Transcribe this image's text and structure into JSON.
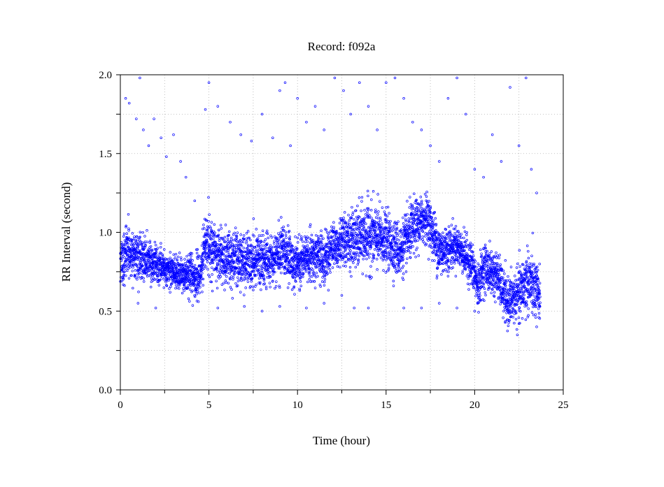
{
  "chart_data": {
    "type": "scatter",
    "title": "Record:  f092a",
    "xlabel": "Time (hour)",
    "ylabel": "RR Interval (second)",
    "xlim": [
      0,
      25
    ],
    "ylim": [
      0,
      2
    ],
    "xticks": [
      "0",
      "5",
      "10",
      "15",
      "20",
      "25"
    ],
    "yticks": [
      "0.0",
      "0.5",
      "1.0",
      "1.5",
      "2.0"
    ],
    "grid": true,
    "marker_color": "#0000ff",
    "segments": [
      [
        0.0,
        0.8,
        0.1
      ],
      [
        0.5,
        0.88,
        0.12
      ],
      [
        1.2,
        0.83,
        0.1
      ],
      [
        2.0,
        0.8,
        0.08
      ],
      [
        3.0,
        0.75,
        0.07
      ],
      [
        4.0,
        0.72,
        0.08
      ],
      [
        4.5,
        0.7,
        0.12
      ],
      [
        4.8,
        0.95,
        0.12
      ],
      [
        5.5,
        0.85,
        0.12
      ],
      [
        6.5,
        0.83,
        0.12
      ],
      [
        7.5,
        0.82,
        0.12
      ],
      [
        8.5,
        0.82,
        0.12
      ],
      [
        9.2,
        0.9,
        0.12
      ],
      [
        9.8,
        0.78,
        0.1
      ],
      [
        10.5,
        0.85,
        0.1
      ],
      [
        11.5,
        0.85,
        0.12
      ],
      [
        12.0,
        0.92,
        0.1
      ],
      [
        13.0,
        0.95,
        0.12
      ],
      [
        14.0,
        0.98,
        0.15
      ],
      [
        15.0,
        0.95,
        0.12
      ],
      [
        15.8,
        0.88,
        0.12
      ],
      [
        16.5,
        1.02,
        0.12
      ],
      [
        17.3,
        1.1,
        0.1
      ],
      [
        18.0,
        0.88,
        0.12
      ],
      [
        19.0,
        0.92,
        0.08
      ],
      [
        19.8,
        0.8,
        0.1
      ],
      [
        20.2,
        0.65,
        0.1
      ],
      [
        20.5,
        0.78,
        0.1
      ],
      [
        21.3,
        0.72,
        0.1
      ],
      [
        21.8,
        0.55,
        0.1
      ],
      [
        22.5,
        0.6,
        0.12
      ],
      [
        23.0,
        0.7,
        0.15
      ],
      [
        23.6,
        0.6,
        0.12
      ]
    ],
    "outlier_points": [
      [
        0.3,
        1.85
      ],
      [
        0.5,
        1.82
      ],
      [
        0.9,
        1.72
      ],
      [
        1.1,
        1.98
      ],
      [
        1.3,
        1.65
      ],
      [
        1.6,
        1.55
      ],
      [
        1.9,
        1.72
      ],
      [
        2.3,
        1.6
      ],
      [
        2.6,
        1.48
      ],
      [
        3.0,
        1.62
      ],
      [
        3.4,
        1.45
      ],
      [
        3.7,
        1.35
      ],
      [
        4.2,
        1.2
      ],
      [
        4.8,
        1.78
      ],
      [
        5.0,
        1.95
      ],
      [
        5.5,
        1.8
      ],
      [
        6.2,
        1.7
      ],
      [
        6.8,
        1.62
      ],
      [
        7.4,
        1.58
      ],
      [
        8.0,
        1.75
      ],
      [
        8.6,
        1.6
      ],
      [
        9.0,
        1.9
      ],
      [
        9.3,
        1.95
      ],
      [
        9.6,
        1.55
      ],
      [
        10.0,
        1.85
      ],
      [
        10.5,
        1.7
      ],
      [
        11.0,
        1.8
      ],
      [
        11.5,
        1.65
      ],
      [
        12.1,
        1.98
      ],
      [
        12.6,
        1.9
      ],
      [
        13.0,
        1.75
      ],
      [
        13.5,
        1.95
      ],
      [
        14.0,
        1.8
      ],
      [
        14.5,
        1.65
      ],
      [
        15.0,
        1.95
      ],
      [
        15.5,
        1.98
      ],
      [
        16.0,
        1.85
      ],
      [
        16.5,
        1.7
      ],
      [
        17.0,
        1.65
      ],
      [
        17.5,
        1.55
      ],
      [
        18.0,
        1.45
      ],
      [
        18.5,
        1.85
      ],
      [
        19.0,
        1.98
      ],
      [
        19.5,
        1.75
      ],
      [
        20.0,
        1.4
      ],
      [
        20.5,
        1.35
      ],
      [
        21.0,
        1.62
      ],
      [
        21.5,
        1.45
      ],
      [
        22.0,
        1.92
      ],
      [
        22.5,
        1.55
      ],
      [
        22.9,
        1.98
      ],
      [
        23.2,
        1.4
      ],
      [
        23.5,
        1.25
      ],
      [
        1.0,
        0.55
      ],
      [
        2.0,
        0.52
      ],
      [
        5.5,
        0.52
      ],
      [
        7.0,
        0.53
      ],
      [
        8.0,
        0.5
      ],
      [
        9.0,
        0.53
      ],
      [
        10.5,
        0.52
      ],
      [
        11.5,
        0.55
      ],
      [
        12.5,
        0.6
      ],
      [
        13.2,
        0.52
      ],
      [
        14.0,
        0.52
      ],
      [
        16.0,
        0.52
      ],
      [
        17.0,
        0.52
      ],
      [
        18.0,
        0.55
      ],
      [
        19.0,
        0.52
      ],
      [
        20.0,
        0.5
      ],
      [
        22.5,
        0.42
      ],
      [
        23.5,
        0.4
      ]
    ]
  }
}
